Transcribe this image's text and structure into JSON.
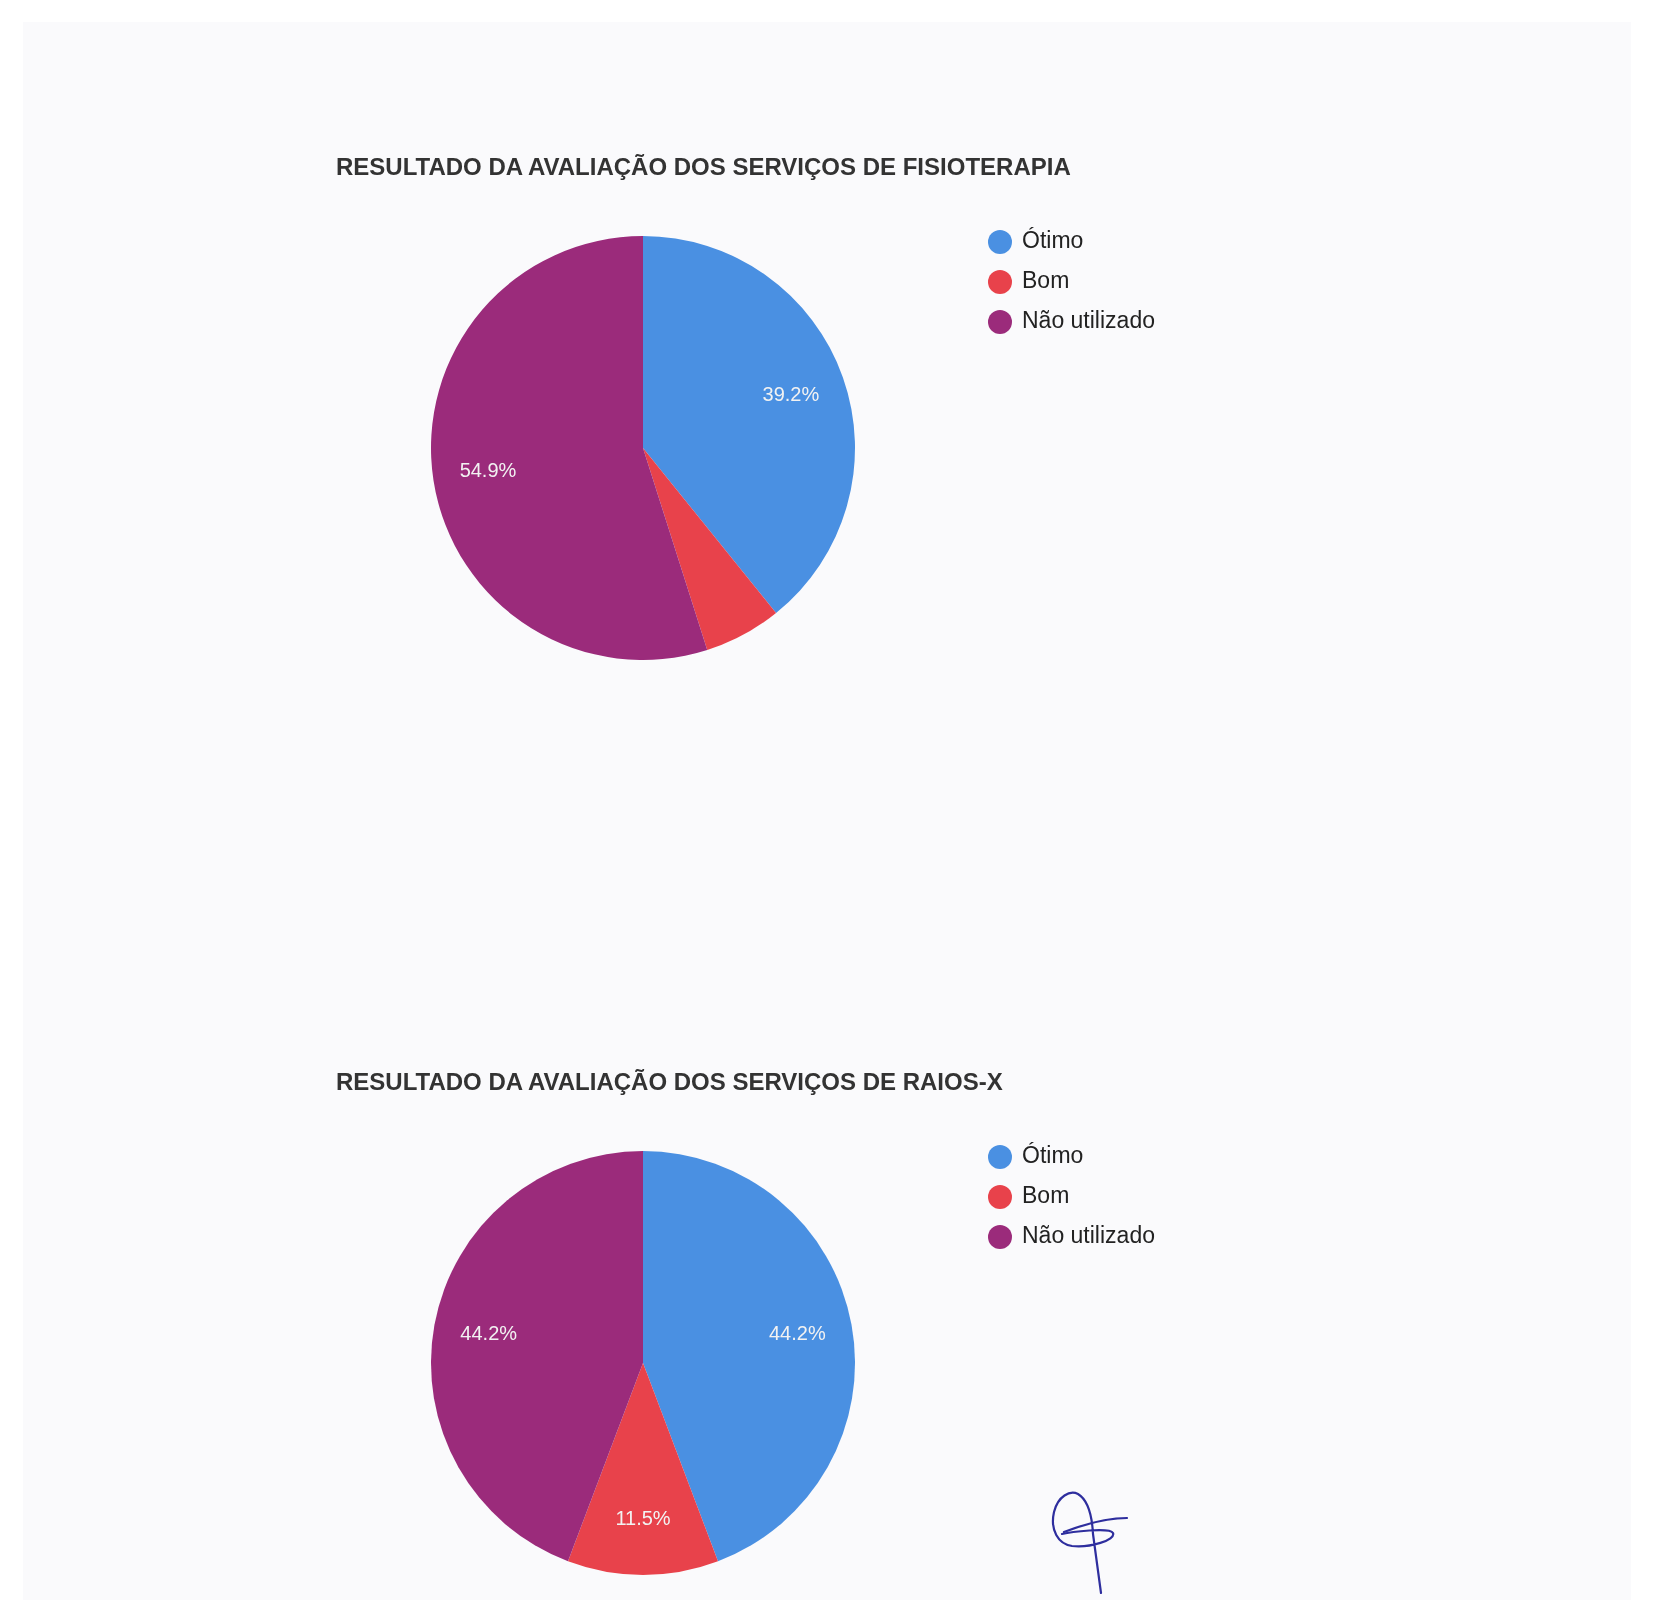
{
  "chart_data": [
    {
      "type": "pie",
      "title": "RESULTADO DA AVALIAÇÃO DOS SERVIÇOS DE FISIOTERAPIA",
      "categories": [
        "Ótimo",
        "Bom",
        "Não utilizado"
      ],
      "values": [
        39.2,
        5.9,
        54.9
      ],
      "colors": [
        "#4a90e2",
        "#e8424b",
        "#9b2b7b"
      ],
      "value_labels": [
        "39.2%",
        null,
        "54.9%"
      ],
      "legend": "top right"
    },
    {
      "type": "pie",
      "title": "RESULTADO DA AVALIAÇÃO DOS SERVIÇOS DE RAIOS-X",
      "categories": [
        "Ótimo",
        "Bom",
        "Não utilizado"
      ],
      "values": [
        44.2,
        11.5,
        44.2
      ],
      "colors": [
        "#4a90e2",
        "#e8424b",
        "#9b2b7b"
      ],
      "value_labels": [
        "44.2%",
        "11.5%",
        "44.2%"
      ],
      "legend": "top right"
    }
  ]
}
